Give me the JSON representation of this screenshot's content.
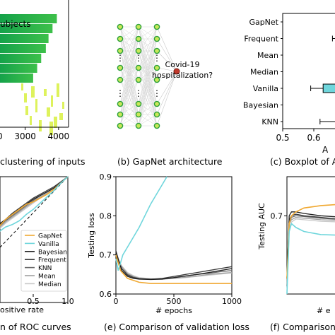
{
  "captions": {
    "a": "clustering of inputs",
    "b": "(b) GapNet architecture",
    "c": "(c) Boxplot of AU",
    "d": "n of ROC curves",
    "e": "(e) Comparison of validation loss",
    "f": "(f) Comparison"
  },
  "colors": {
    "gapnet": "#f0a830",
    "vanilla": "#6fd6dc",
    "bayesian": "#1f1f1f",
    "frequent": "#3a3a3a",
    "knn": "#6a6a6a",
    "mean": "#a0a0a0",
    "median": "#c8c8c8",
    "heat_green": "#22b24c",
    "heat_lime": "#d8f040",
    "node_green": "#2aa03a",
    "node_red": "#c0392b"
  },
  "panel_b": {
    "output_label_line1": "Covid-19",
    "output_label_line2": "hospitalization?",
    "ellipsis": "⋮"
  },
  "chart_data": [
    {
      "panel": "a",
      "type": "heatmap",
      "xlabel": "ubjects",
      "xticks": [
        "2000",
        "3000",
        "4000"
      ],
      "xlim": [
        1400,
        4300
      ],
      "bars": [
        {
          "end": 3950,
          "color": "green"
        },
        {
          "end": 3820,
          "color": "green"
        },
        {
          "end": 3700,
          "color": "green"
        },
        {
          "end": 3620,
          "color": "green"
        },
        {
          "end": 3480,
          "color": "green"
        },
        {
          "end": 3360,
          "color": "green"
        },
        {
          "end": 3240,
          "color": "green"
        }
      ]
    },
    {
      "panel": "c",
      "type": "boxplot",
      "xlabel": "A",
      "xticks": [
        "0.5",
        "0.6"
      ],
      "xlim": [
        0.5,
        0.7
      ],
      "categories": [
        "GapNet",
        "Frequent",
        "Mean",
        "Median",
        "Vanilla",
        "Bayesian",
        "KNN"
      ],
      "boxes": {
        "Frequent": {
          "whisker_low": 0.66,
          "whisker_high": 0.7
        },
        "Vanilla": {
          "whisker_low": 0.59,
          "q1": 0.63,
          "q3": 0.7,
          "whisker_high": 0.7
        },
        "KNN": {
          "whisker_low": 0.62,
          "whisker_high": 0.7
        }
      }
    },
    {
      "panel": "d",
      "type": "line",
      "xlabel": "ositive rate",
      "ylabel": "",
      "xticks": [
        "0.5",
        "1.0"
      ],
      "xlim": [
        0,
        1
      ],
      "ylim": [
        0,
        1
      ],
      "legend": [
        "GapNet",
        "Vanilla",
        "Bayesian",
        "Frequent",
        "KNN",
        "Mean",
        "Median"
      ],
      "series": [
        {
          "name": "GapNet",
          "x": [
            0,
            0.1,
            0.2,
            0.3,
            0.4,
            0.5,
            0.6,
            0.7,
            0.8,
            0.9,
            1.0
          ],
          "y": [
            0.6,
            0.66,
            0.7,
            0.74,
            0.78,
            0.8,
            0.83,
            0.86,
            0.9,
            0.95,
            1.0
          ]
        },
        {
          "name": "Vanilla",
          "x": [
            0,
            0.1,
            0.2,
            0.3,
            0.4,
            0.5,
            0.6,
            0.7,
            0.8,
            0.9,
            1.0
          ],
          "y": [
            0.56,
            0.6,
            0.62,
            0.65,
            0.7,
            0.74,
            0.79,
            0.84,
            0.89,
            0.95,
            1.0
          ]
        },
        {
          "name": "Bayesian",
          "x": [
            0,
            0.1,
            0.2,
            0.3,
            0.4,
            0.5,
            0.6,
            0.7,
            0.8,
            0.9,
            1.0
          ],
          "y": [
            0.62,
            0.66,
            0.7,
            0.74,
            0.78,
            0.82,
            0.85,
            0.88,
            0.91,
            0.95,
            1.0
          ]
        },
        {
          "name": "Frequent",
          "x": [
            0,
            0.1,
            0.2,
            0.3,
            0.4,
            0.5,
            0.6,
            0.7,
            0.8,
            0.9,
            1.0
          ],
          "y": [
            0.61,
            0.66,
            0.71,
            0.75,
            0.79,
            0.83,
            0.86,
            0.89,
            0.92,
            0.96,
            1.0
          ]
        },
        {
          "name": "KNN",
          "x": [
            0,
            0.1,
            0.2,
            0.3,
            0.4,
            0.5,
            0.6,
            0.7,
            0.8,
            0.9,
            1.0
          ],
          "y": [
            0.6,
            0.65,
            0.69,
            0.73,
            0.77,
            0.81,
            0.85,
            0.88,
            0.91,
            0.95,
            1.0
          ]
        },
        {
          "name": "Mean",
          "x": [
            0,
            0.1,
            0.2,
            0.3,
            0.4,
            0.5,
            0.6,
            0.7,
            0.8,
            0.9,
            1.0
          ],
          "y": [
            0.59,
            0.64,
            0.68,
            0.72,
            0.76,
            0.8,
            0.84,
            0.87,
            0.91,
            0.95,
            1.0
          ]
        },
        {
          "name": "Median",
          "x": [
            0,
            0.1,
            0.2,
            0.3,
            0.4,
            0.5,
            0.6,
            0.7,
            0.8,
            0.9,
            1.0
          ],
          "y": [
            0.58,
            0.63,
            0.67,
            0.71,
            0.75,
            0.79,
            0.83,
            0.87,
            0.91,
            0.95,
            1.0
          ]
        }
      ]
    },
    {
      "panel": "e",
      "type": "line",
      "xlabel": "# epochs",
      "ylabel": "Testing loss",
      "xticks": [
        "0",
        "500",
        "1000"
      ],
      "yticks": [
        "0.6",
        "0.7",
        "0.8",
        "0.9"
      ],
      "xlim": [
        0,
        1000
      ],
      "ylim": [
        0.6,
        0.9
      ],
      "series": [
        {
          "name": "Vanilla",
          "x": [
            0,
            20,
            40,
            60,
            100,
            200,
            300,
            400,
            440
          ],
          "y": [
            0.69,
            0.66,
            0.68,
            0.7,
            0.72,
            0.77,
            0.83,
            0.88,
            0.9
          ]
        },
        {
          "name": "GapNet",
          "x": [
            0,
            40,
            100,
            150,
            200,
            300,
            1000
          ],
          "y": [
            0.7,
            0.66,
            0.64,
            0.635,
            0.63,
            0.627,
            0.627
          ]
        },
        {
          "name": "Bayesian",
          "x": [
            0,
            50,
            100,
            150,
            200,
            300,
            400,
            500,
            600,
            700,
            800,
            900,
            1000
          ],
          "y": [
            0.71,
            0.66,
            0.645,
            0.64,
            0.638,
            0.637,
            0.638,
            0.642,
            0.646,
            0.65,
            0.655,
            0.66,
            0.665
          ]
        },
        {
          "name": "Frequent",
          "x": [
            0,
            50,
            100,
            150,
            200,
            300,
            400,
            500,
            600,
            700,
            800,
            900,
            1000
          ],
          "y": [
            0.7,
            0.665,
            0.648,
            0.642,
            0.639,
            0.638,
            0.64,
            0.645,
            0.65,
            0.655,
            0.66,
            0.665,
            0.67
          ]
        },
        {
          "name": "KNN",
          "x": [
            0,
            50,
            100,
            150,
            200,
            300,
            400,
            500,
            600,
            700,
            800,
            900,
            1000
          ],
          "y": [
            0.69,
            0.665,
            0.65,
            0.643,
            0.64,
            0.638,
            0.639,
            0.642,
            0.646,
            0.65,
            0.653,
            0.657,
            0.66
          ]
        },
        {
          "name": "Mean",
          "x": [
            0,
            50,
            100,
            150,
            200,
            300,
            400,
            500,
            600,
            700,
            800,
            900,
            1000
          ],
          "y": [
            0.7,
            0.67,
            0.652,
            0.645,
            0.64,
            0.638,
            0.638,
            0.64,
            0.643,
            0.646,
            0.65,
            0.653,
            0.655
          ]
        },
        {
          "name": "Median",
          "x": [
            0,
            50,
            100,
            150,
            200,
            300,
            400,
            500,
            600,
            700,
            800,
            900,
            1000
          ],
          "y": [
            0.7,
            0.672,
            0.655,
            0.647,
            0.642,
            0.639,
            0.638,
            0.64,
            0.642,
            0.645,
            0.648,
            0.651,
            0.654
          ]
        }
      ]
    },
    {
      "panel": "f",
      "type": "line",
      "xlabel": "# e",
      "ylabel": "Testing AUC",
      "yticks": [
        "0.7"
      ],
      "xlim": [
        0,
        1000
      ],
      "ylim": [
        0.6,
        0.75
      ],
      "series": [
        {
          "name": "GapNet",
          "x": [
            0,
            20,
            40,
            80,
            150,
            300,
            500
          ],
          "y": [
            0.62,
            0.69,
            0.7,
            0.705,
            0.71,
            0.713,
            0.715
          ]
        },
        {
          "name": "Vanilla",
          "x": [
            0,
            20,
            40,
            80,
            150,
            300,
            500
          ],
          "y": [
            0.6,
            0.68,
            0.69,
            0.685,
            0.68,
            0.676,
            0.675
          ]
        },
        {
          "name": "Bayesian",
          "x": [
            0,
            20,
            40,
            80,
            150,
            300,
            500
          ],
          "y": [
            0.62,
            0.7,
            0.705,
            0.705,
            0.703,
            0.7,
            0.698
          ]
        },
        {
          "name": "Frequent",
          "x": [
            0,
            20,
            40,
            80,
            150,
            300,
            500
          ],
          "y": [
            0.62,
            0.695,
            0.7,
            0.702,
            0.7,
            0.698,
            0.695
          ]
        },
        {
          "name": "KNN",
          "x": [
            0,
            20,
            40,
            80,
            150,
            300,
            500
          ],
          "y": [
            0.61,
            0.69,
            0.698,
            0.7,
            0.699,
            0.697,
            0.695
          ]
        },
        {
          "name": "Mean",
          "x": [
            0,
            20,
            40,
            80,
            150,
            300,
            500
          ],
          "y": [
            0.61,
            0.69,
            0.695,
            0.698,
            0.697,
            0.695,
            0.694
          ]
        },
        {
          "name": "Median",
          "x": [
            0,
            20,
            40,
            80,
            150,
            300,
            500
          ],
          "y": [
            0.61,
            0.685,
            0.692,
            0.696,
            0.695,
            0.693,
            0.692
          ]
        }
      ]
    }
  ]
}
